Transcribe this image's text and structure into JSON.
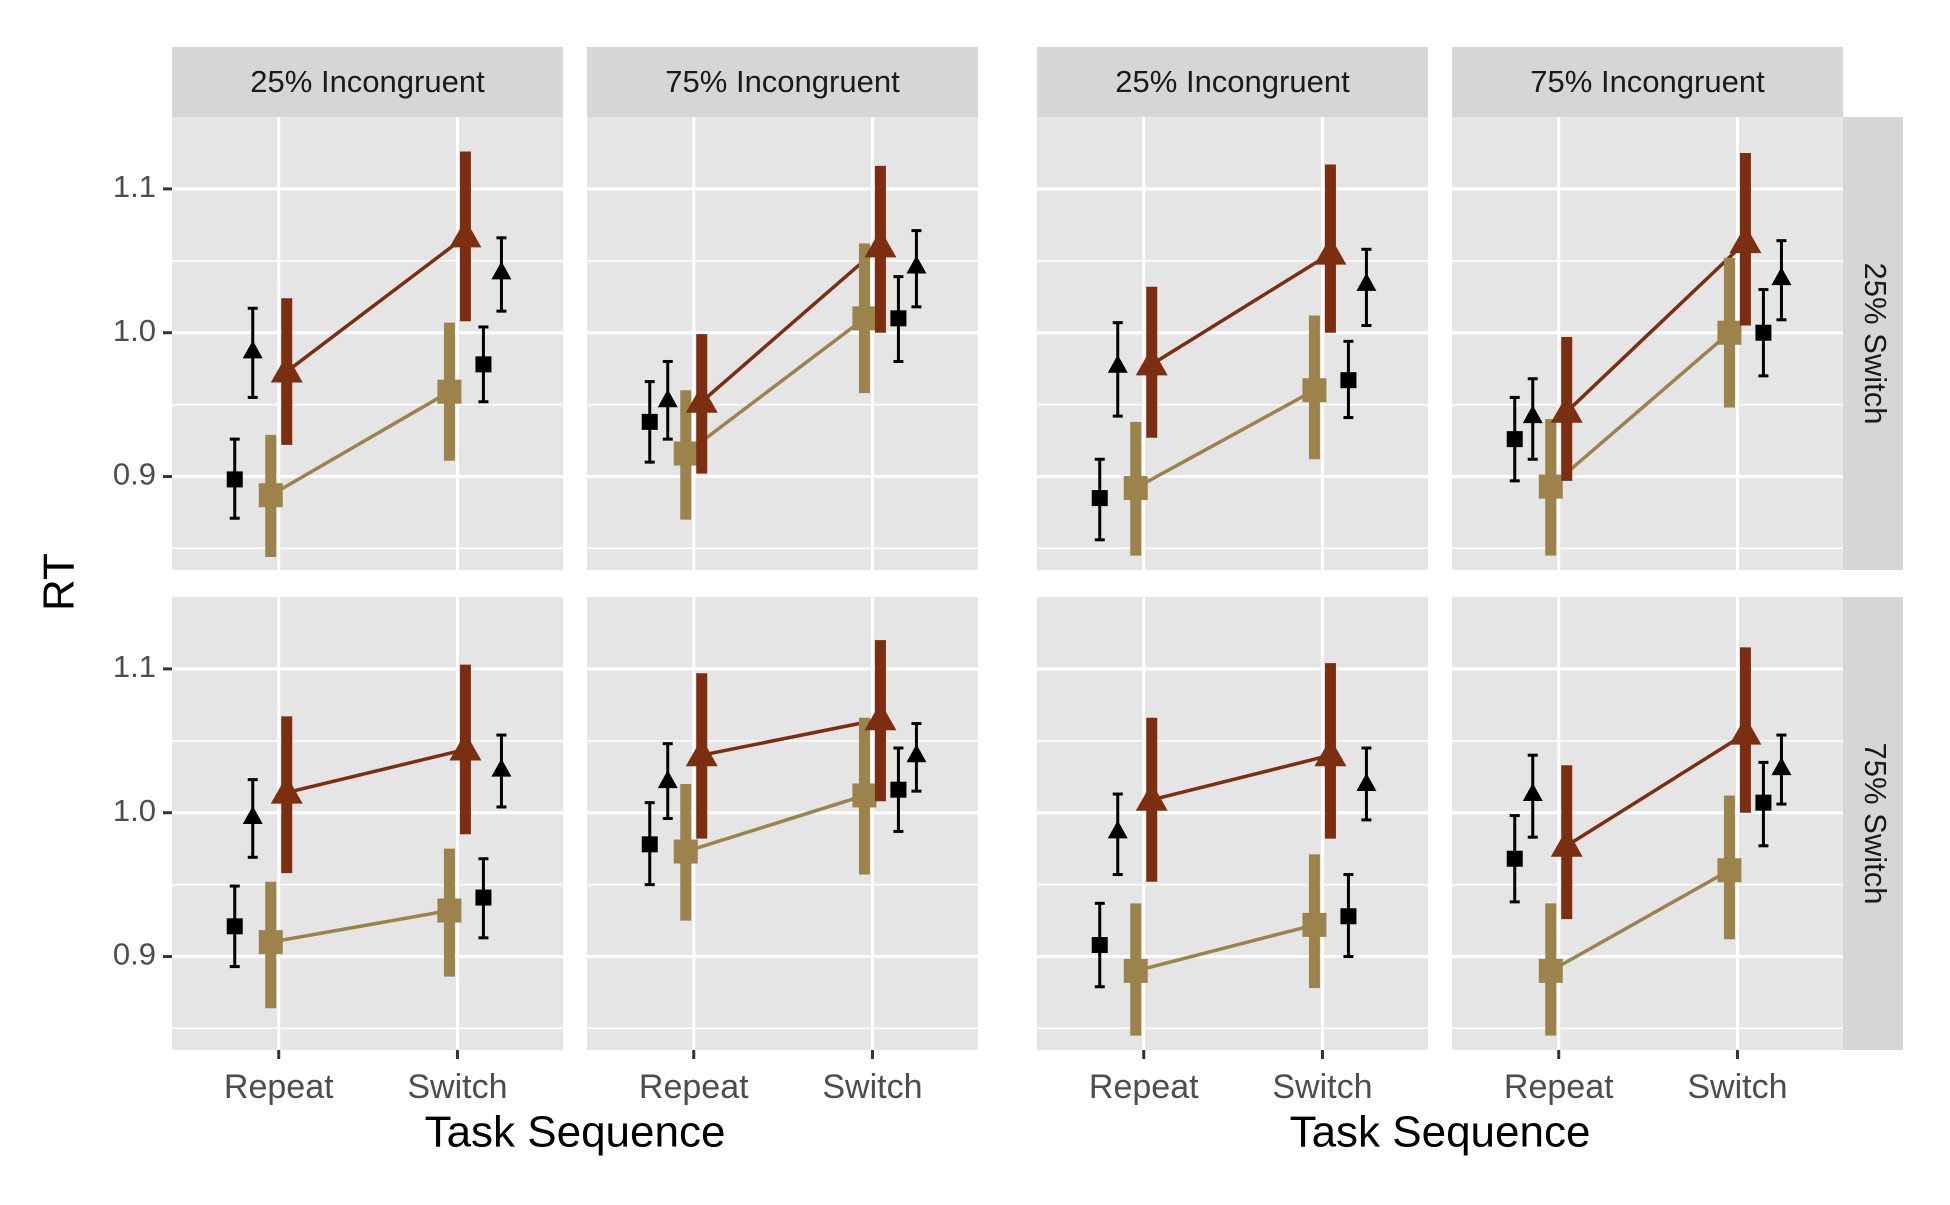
{
  "chart_data": {
    "type": "scatter",
    "ylabel": "RT",
    "xlabel": "Task Sequence",
    "x_categories": [
      "Repeat",
      "Switch"
    ],
    "column_strips": [
      "25% Incongruent",
      "75% Incongruent",
      "25% Incongruent",
      "75% Incongruent"
    ],
    "row_strips": [
      "25% Switch",
      "75% Switch"
    ],
    "y_ticks": [
      {
        "value": 0.9,
        "label": "0.9"
      },
      {
        "value": 1.0,
        "label": "1.0"
      },
      {
        "value": 1.1,
        "label": "1.1"
      }
    ],
    "ylim": [
      0.835,
      1.15
    ],
    "grid": true,
    "colors": {
      "panel_bg": "#e5e5e5",
      "strip_bg": "#d6d6d6",
      "grid": "#ffffff",
      "congruent_model": "#9b834b",
      "incongruent_model": "#7b2e10",
      "observed": "#000000"
    },
    "groups": [
      {
        "panels": [
          {
            "row": 0,
            "col": 0,
            "model_congruent": [
              {
                "y": 0.887,
                "lo": 0.844,
                "hi": 0.929
              },
              {
                "y": 0.959,
                "lo": 0.911,
                "hi": 1.007
              }
            ],
            "model_incongruent": [
              {
                "y": 0.973,
                "lo": 0.922,
                "hi": 1.024
              },
              {
                "y": 1.067,
                "lo": 1.008,
                "hi": 1.126
              }
            ],
            "observed_congruent": [
              {
                "y": 0.898,
                "lo": 0.871,
                "hi": 0.926
              },
              {
                "y": 0.978,
                "lo": 0.952,
                "hi": 1.004
              }
            ],
            "observed_incongruent": [
              {
                "y": 0.987,
                "lo": 0.955,
                "hi": 1.017
              },
              {
                "y": 1.042,
                "lo": 1.015,
                "hi": 1.066
              }
            ]
          },
          {
            "row": 0,
            "col": 1,
            "model_congruent": [
              {
                "y": 0.916,
                "lo": 0.87,
                "hi": 0.96
              },
              {
                "y": 1.01,
                "lo": 0.958,
                "hi": 1.062
              }
            ],
            "model_incongruent": [
              {
                "y": 0.952,
                "lo": 0.902,
                "hi": 0.999
              },
              {
                "y": 1.06,
                "lo": 1.0,
                "hi": 1.116
              }
            ],
            "observed_congruent": [
              {
                "y": 0.938,
                "lo": 0.91,
                "hi": 0.966
              },
              {
                "y": 1.01,
                "lo": 0.98,
                "hi": 1.039
              }
            ],
            "observed_incongruent": [
              {
                "y": 0.953,
                "lo": 0.926,
                "hi": 0.98
              },
              {
                "y": 1.046,
                "lo": 1.018,
                "hi": 1.071
              }
            ]
          },
          {
            "row": 1,
            "col": 0,
            "model_congruent": [
              {
                "y": 0.91,
                "lo": 0.864,
                "hi": 0.952
              },
              {
                "y": 0.932,
                "lo": 0.886,
                "hi": 0.975
              }
            ],
            "model_incongruent": [
              {
                "y": 1.014,
                "lo": 0.958,
                "hi": 1.067
              },
              {
                "y": 1.044,
                "lo": 0.985,
                "hi": 1.103
              }
            ],
            "observed_congruent": [
              {
                "y": 0.921,
                "lo": 0.893,
                "hi": 0.949
              },
              {
                "y": 0.941,
                "lo": 0.913,
                "hi": 0.968
              }
            ],
            "observed_incongruent": [
              {
                "y": 0.997,
                "lo": 0.969,
                "hi": 1.023
              },
              {
                "y": 1.03,
                "lo": 1.004,
                "hi": 1.054
              }
            ]
          },
          {
            "row": 1,
            "col": 1,
            "model_congruent": [
              {
                "y": 0.973,
                "lo": 0.925,
                "hi": 1.02
              },
              {
                "y": 1.012,
                "lo": 0.957,
                "hi": 1.066
              }
            ],
            "model_incongruent": [
              {
                "y": 1.04,
                "lo": 0.982,
                "hi": 1.097
              },
              {
                "y": 1.065,
                "lo": 1.008,
                "hi": 1.12
              }
            ],
            "observed_congruent": [
              {
                "y": 0.978,
                "lo": 0.95,
                "hi": 1.007
              },
              {
                "y": 1.016,
                "lo": 0.987,
                "hi": 1.045
              }
            ],
            "observed_incongruent": [
              {
                "y": 1.022,
                "lo": 0.996,
                "hi": 1.048
              },
              {
                "y": 1.04,
                "lo": 1.015,
                "hi": 1.062
              }
            ]
          }
        ]
      },
      {
        "panels": [
          {
            "row": 0,
            "col": 0,
            "model_congruent": [
              {
                "y": 0.892,
                "lo": 0.845,
                "hi": 0.938
              },
              {
                "y": 0.96,
                "lo": 0.912,
                "hi": 1.012
              }
            ],
            "model_incongruent": [
              {
                "y": 0.978,
                "lo": 0.927,
                "hi": 1.032
              },
              {
                "y": 1.055,
                "lo": 1.0,
                "hi": 1.117
              }
            ],
            "observed_congruent": [
              {
                "y": 0.885,
                "lo": 0.856,
                "hi": 0.912
              },
              {
                "y": 0.967,
                "lo": 0.941,
                "hi": 0.994
              }
            ],
            "observed_incongruent": [
              {
                "y": 0.977,
                "lo": 0.942,
                "hi": 1.007
              },
              {
                "y": 1.034,
                "lo": 1.005,
                "hi": 1.058
              }
            ]
          },
          {
            "row": 0,
            "col": 1,
            "model_congruent": [
              {
                "y": 0.893,
                "lo": 0.845,
                "hi": 0.94
              },
              {
                "y": 1.0,
                "lo": 0.948,
                "hi": 1.052
              }
            ],
            "model_incongruent": [
              {
                "y": 0.945,
                "lo": 0.897,
                "hi": 0.997
              },
              {
                "y": 1.063,
                "lo": 1.005,
                "hi": 1.125
              }
            ],
            "observed_congruent": [
              {
                "y": 0.926,
                "lo": 0.897,
                "hi": 0.955
              },
              {
                "y": 1.0,
                "lo": 0.97,
                "hi": 1.03
              }
            ],
            "observed_incongruent": [
              {
                "y": 0.942,
                "lo": 0.912,
                "hi": 0.968
              },
              {
                "y": 1.038,
                "lo": 1.009,
                "hi": 1.064
              }
            ]
          },
          {
            "row": 1,
            "col": 0,
            "model_congruent": [
              {
                "y": 0.89,
                "lo": 0.845,
                "hi": 0.937
              },
              {
                "y": 0.922,
                "lo": 0.878,
                "hi": 0.971
              }
            ],
            "model_incongruent": [
              {
                "y": 1.009,
                "lo": 0.952,
                "hi": 1.066
              },
              {
                "y": 1.04,
                "lo": 0.982,
                "hi": 1.104
              }
            ],
            "observed_congruent": [
              {
                "y": 0.908,
                "lo": 0.879,
                "hi": 0.937
              },
              {
                "y": 0.928,
                "lo": 0.9,
                "hi": 0.957
              }
            ],
            "observed_incongruent": [
              {
                "y": 0.987,
                "lo": 0.957,
                "hi": 1.013
              },
              {
                "y": 1.02,
                "lo": 0.995,
                "hi": 1.045
              }
            ]
          },
          {
            "row": 1,
            "col": 1,
            "model_congruent": [
              {
                "y": 0.89,
                "lo": 0.845,
                "hi": 0.937
              },
              {
                "y": 0.96,
                "lo": 0.912,
                "hi": 1.012
              }
            ],
            "model_incongruent": [
              {
                "y": 0.977,
                "lo": 0.926,
                "hi": 1.033
              },
              {
                "y": 1.055,
                "lo": 1.0,
                "hi": 1.115
              }
            ],
            "observed_congruent": [
              {
                "y": 0.968,
                "lo": 0.938,
                "hi": 0.998
              },
              {
                "y": 1.007,
                "lo": 0.977,
                "hi": 1.035
              }
            ],
            "observed_incongruent": [
              {
                "y": 1.013,
                "lo": 0.983,
                "hi": 1.04
              },
              {
                "y": 1.031,
                "lo": 1.006,
                "hi": 1.054
              }
            ]
          }
        ]
      }
    ]
  }
}
